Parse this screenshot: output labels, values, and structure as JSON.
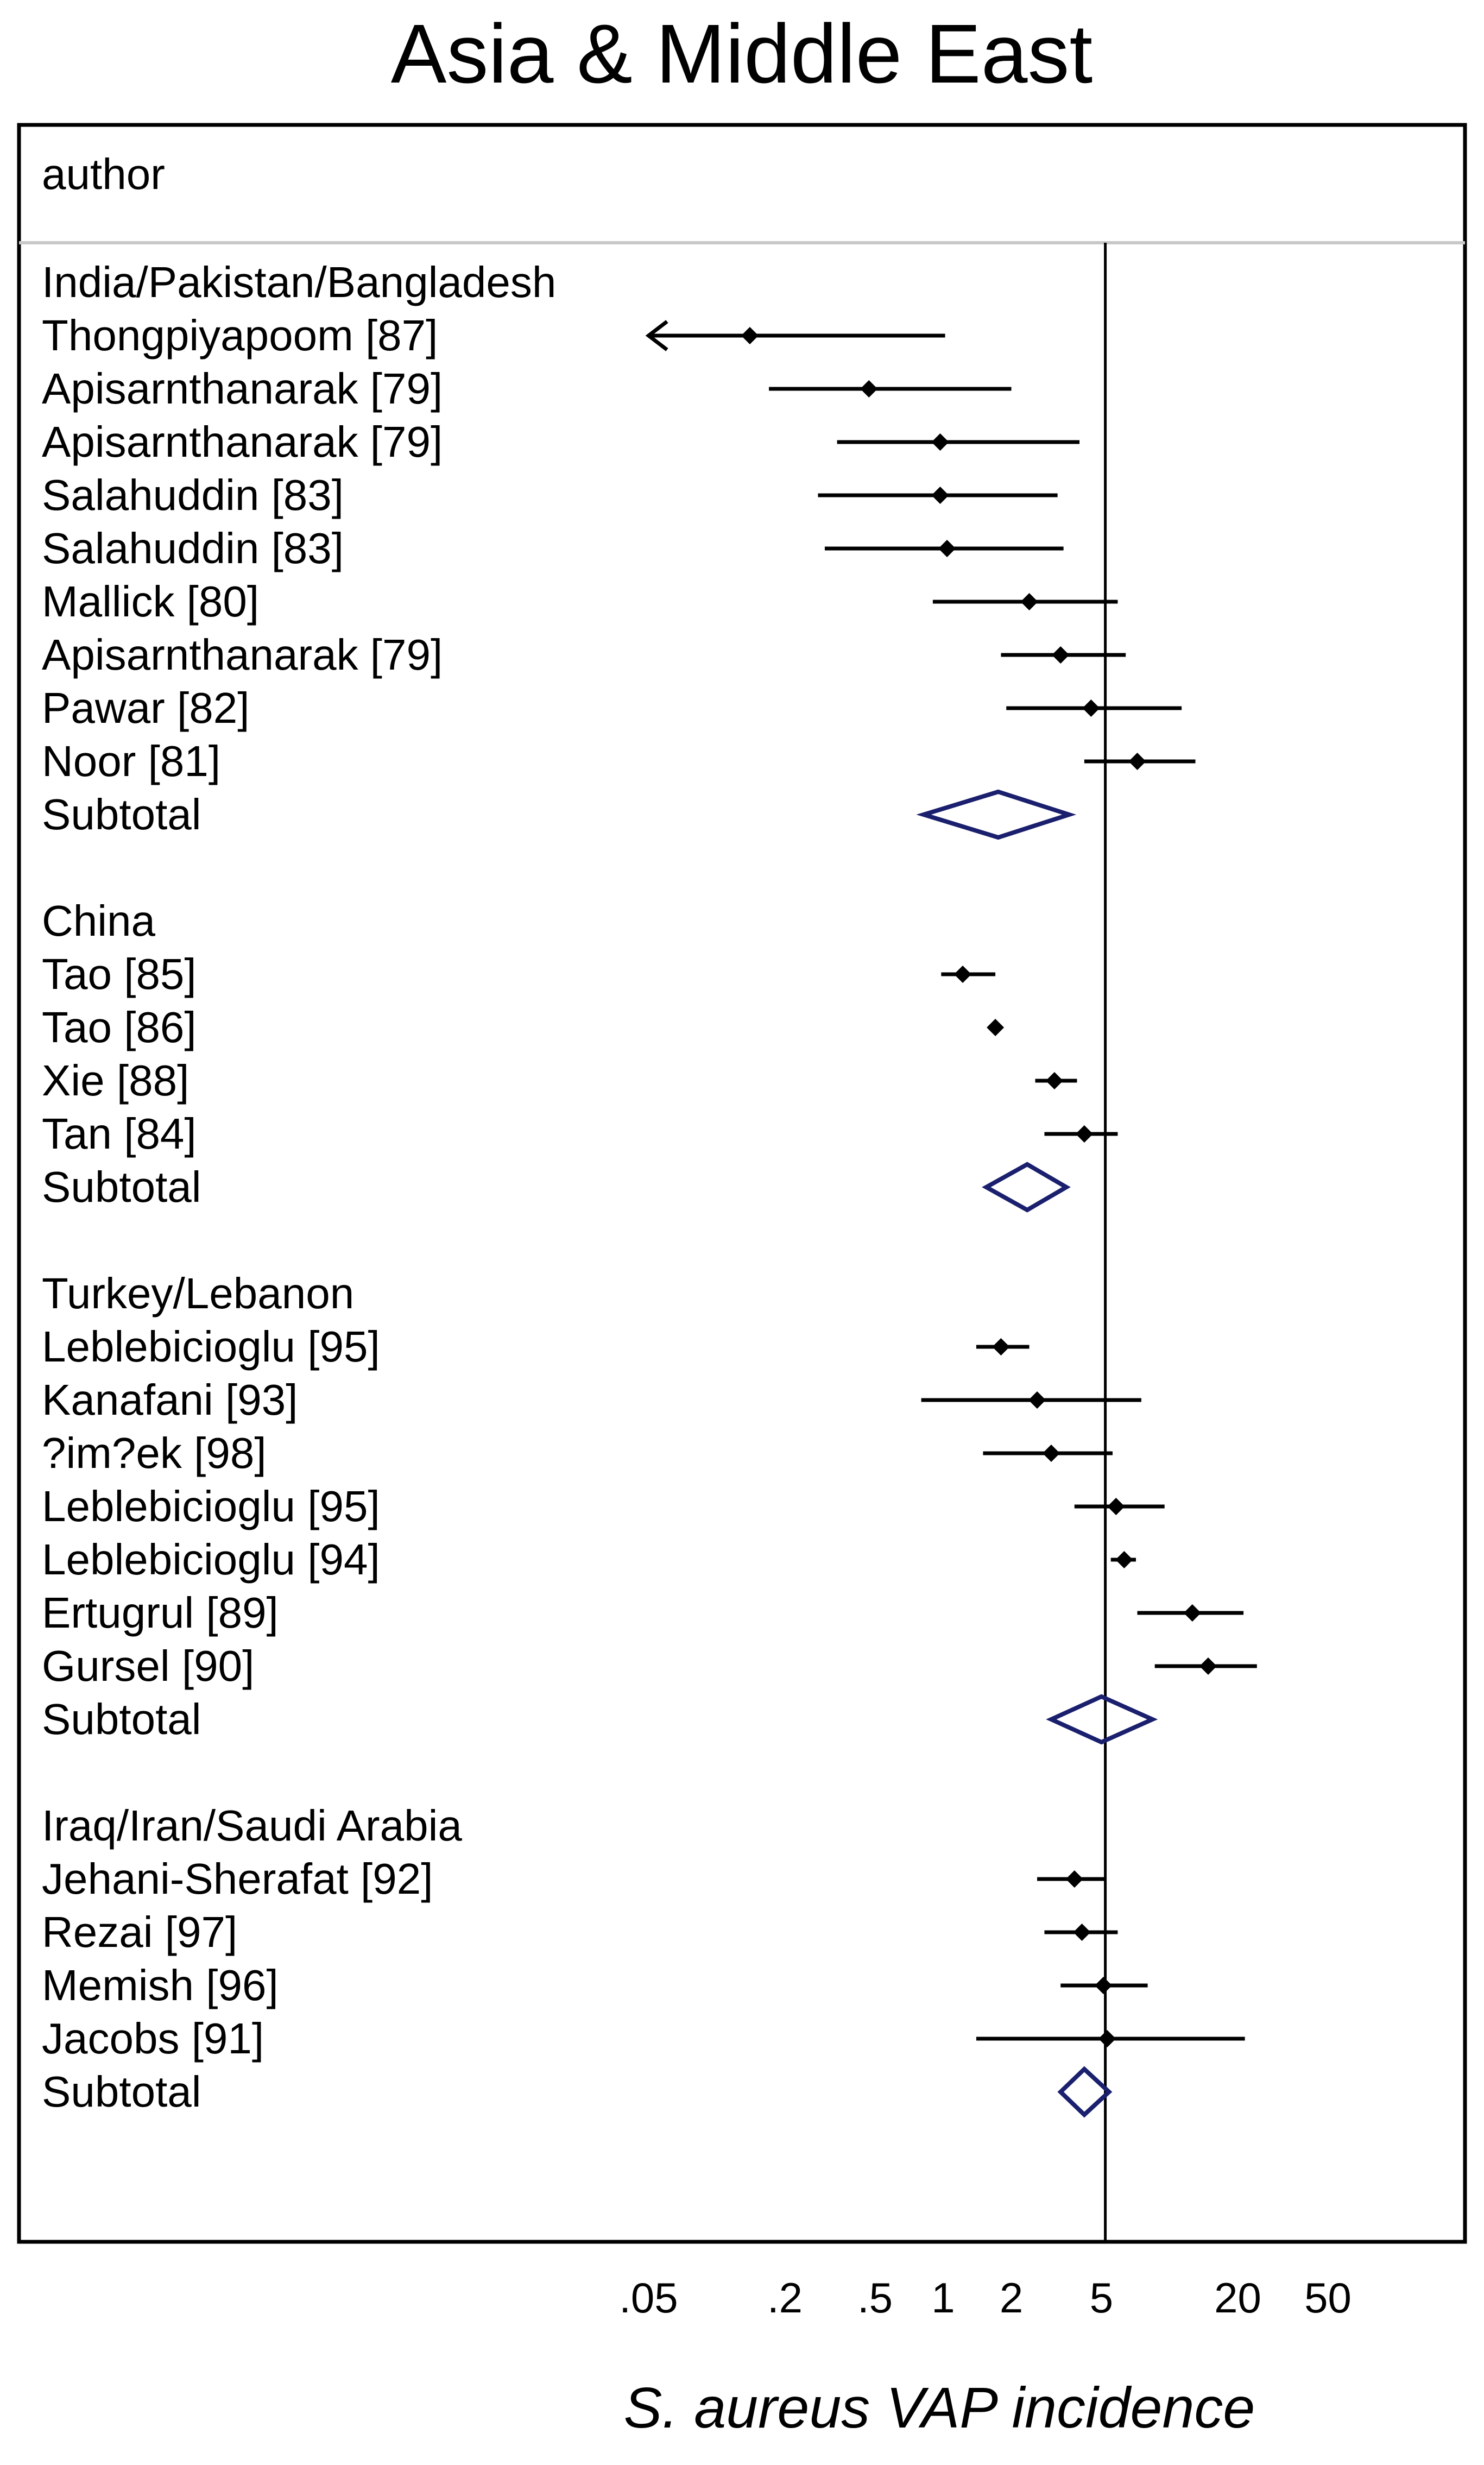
{
  "chart_data": {
    "type": "forest",
    "title": "Asia & Middle East",
    "column_header": "author",
    "xlabel": "S. aureus VAP incidence",
    "xscale": "log",
    "xlim": [
      0.025,
      110
    ],
    "reference_line": 5.2,
    "xticks": [
      {
        "value": 0.05,
        "label": ".05"
      },
      {
        "value": 0.2,
        "label": ".2"
      },
      {
        "value": 0.5,
        "label": ".5"
      },
      {
        "value": 1,
        "label": "1"
      },
      {
        "value": 2,
        "label": "2"
      },
      {
        "value": 5,
        "label": "5"
      },
      {
        "value": 20,
        "label": "20"
      },
      {
        "value": 50,
        "label": "50"
      }
    ],
    "colors": {
      "study": "#000000",
      "subtotal": "#1a1f6e",
      "refline": "#000000",
      "header_rule": "#c8c8c8"
    },
    "groups": [
      {
        "name": "India/Pakistan/Bangladesh",
        "studies": [
          {
            "label": "Thongpiyapoom [87]",
            "est": 0.14,
            "lo": 0.05,
            "hi": 1.02,
            "lo_truncated": true
          },
          {
            "label": "Apisarnthanarak [79]",
            "est": 0.47,
            "lo": 0.17,
            "hi": 2.0
          },
          {
            "label": "Apisarnthanarak [79]",
            "est": 0.97,
            "lo": 0.34,
            "hi": 4.0
          },
          {
            "label": "Salahuddin [83]",
            "est": 0.97,
            "lo": 0.28,
            "hi": 3.2
          },
          {
            "label": "Salahuddin [83]",
            "est": 1.04,
            "lo": 0.3,
            "hi": 3.4
          },
          {
            "label": "Mallick [80]",
            "est": 2.4,
            "lo": 0.9,
            "hi": 5.9
          },
          {
            "label": "Apisarnthanarak [79]",
            "est": 3.3,
            "lo": 1.8,
            "hi": 6.4
          },
          {
            "label": "Pawar [82]",
            "est": 4.5,
            "lo": 1.9,
            "hi": 11.3
          },
          {
            "label": "Noor [81]",
            "est": 7.2,
            "lo": 4.2,
            "hi": 13.0
          }
        ],
        "subtotal": {
          "label": "Subtotal",
          "est": 1.75,
          "lo": 0.82,
          "hi": 3.6
        }
      },
      {
        "name": "China",
        "studies": [
          {
            "label": "Tao [85]",
            "est": 1.22,
            "lo": 0.98,
            "hi": 1.7
          },
          {
            "label": "Tao [86]",
            "est": 1.7,
            "lo": 1.62,
            "hi": 1.78
          },
          {
            "label": "Xie [88]",
            "est": 3.1,
            "lo": 2.55,
            "hi": 3.9
          },
          {
            "label": "Tan [84]",
            "est": 4.2,
            "lo": 2.8,
            "hi": 5.9
          }
        ],
        "subtotal": {
          "label": "Subtotal",
          "est": 2.35,
          "lo": 1.55,
          "hi": 3.5
        }
      },
      {
        "name": "Turkey/Lebanon",
        "studies": [
          {
            "label": "Leblebicioglu [95]",
            "est": 1.8,
            "lo": 1.4,
            "hi": 2.4
          },
          {
            "label": "Kanafani [93]",
            "est": 2.6,
            "lo": 0.8,
            "hi": 7.5
          },
          {
            "label": "?im?ek [98]",
            "est": 3.0,
            "lo": 1.5,
            "hi": 5.6
          },
          {
            "label": "Leblebicioglu [95]",
            "est": 5.8,
            "lo": 3.8,
            "hi": 9.5
          },
          {
            "label": "Leblebicioglu [94]",
            "est": 6.3,
            "lo": 5.5,
            "hi": 7.1
          },
          {
            "label": "Ertugrul [89]",
            "est": 12.6,
            "lo": 7.2,
            "hi": 21.2
          },
          {
            "label": "Gursel [90]",
            "est": 14.8,
            "lo": 8.6,
            "hi": 24.3
          }
        ],
        "subtotal": {
          "label": "Subtotal",
          "est": 5.0,
          "lo": 3.0,
          "hi": 8.4
        }
      },
      {
        "name": "Iraq/Iran/Saudi Arabia",
        "studies": [
          {
            "label": "Jehani-Sherafat [92]",
            "est": 3.8,
            "lo": 2.6,
            "hi": 5.2
          },
          {
            "label": "Rezai [97]",
            "est": 4.1,
            "lo": 2.8,
            "hi": 5.9
          },
          {
            "label": "Memish [96]",
            "est": 5.1,
            "lo": 3.3,
            "hi": 8.0
          },
          {
            "label": "Jacobs [91]",
            "est": 5.3,
            "lo": 1.4,
            "hi": 21.5
          }
        ],
        "subtotal": {
          "label": "Subtotal",
          "est": 4.2,
          "lo": 3.3,
          "hi": 5.4
        }
      }
    ]
  }
}
